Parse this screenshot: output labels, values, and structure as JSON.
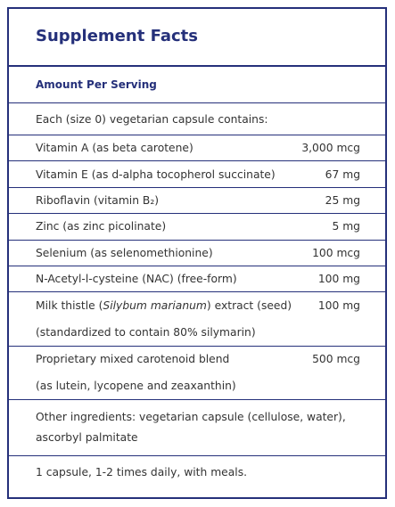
{
  "header": {
    "title": "Supplement Facts",
    "subtitle": "Amount Per Serving"
  },
  "intro": "Each (size 0) vegetarian capsule contains:",
  "ingredients": [
    {
      "name": [
        "Vitamin A (as beta carotene)"
      ],
      "amount": "3,000 mcg"
    },
    {
      "name": [
        "Vitamin E (as d-alpha tocopherol succinate)"
      ],
      "amount": "67 mg"
    },
    {
      "name": [
        "Riboflavin (vitamin B₂)"
      ],
      "amount": "25 mg"
    },
    {
      "name": [
        "Zinc (as zinc picolinate)"
      ],
      "amount": "5 mg"
    },
    {
      "name": [
        "Selenium (as selenomethionine)"
      ],
      "amount": "100 mcg"
    },
    {
      "name": [
        "N-Acetyl-l-cysteine (NAC) (free-form)"
      ],
      "amount": "100 mg"
    },
    {
      "name": [
        "Milk thistle (",
        "Silybum marianum",
        ") extract (seed)"
      ],
      "amount": "100 mg",
      "note": "(standardized to contain 80% silymarin)"
    },
    {
      "name": [
        "Proprietary mixed carotenoid blend"
      ],
      "amount": "500 mcg",
      "note": "(as lutein, lycopene and zeaxanthin)"
    }
  ],
  "other_ingredients": [
    "Other ingredients: vegetarian capsule (cellulose, water),",
    "ascorbyl palmitate"
  ],
  "directions": "1 capsule, 1-2 times daily, with meals."
}
